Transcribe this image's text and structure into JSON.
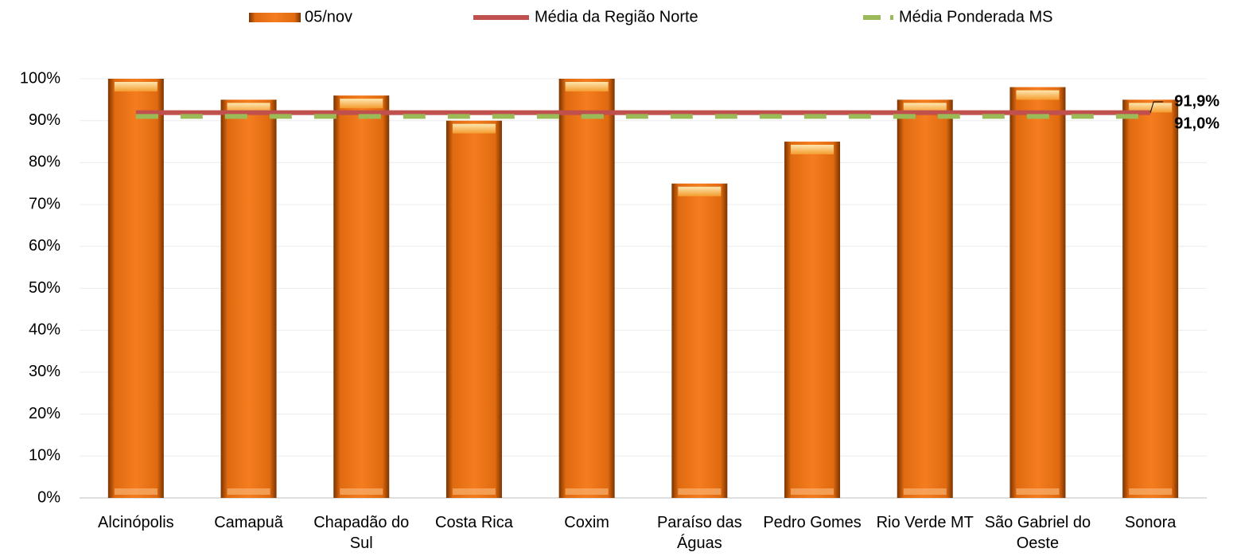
{
  "chart_data": {
    "type": "bar",
    "categories": [
      "Alcinópolis",
      "Camapuã",
      "Chapadão do Sul",
      "Costa Rica",
      "Coxim",
      "Paraíso das Águas",
      "Pedro Gomes",
      "Rio Verde MT",
      "São Gabriel do Oeste",
      "Sonora"
    ],
    "series": [
      {
        "name": "05/nov",
        "type": "bar",
        "color": "#f07820",
        "values": [
          100,
          95,
          96,
          90,
          100,
          75,
          85,
          95,
          98,
          95
        ]
      },
      {
        "name": "Média da Região Norte",
        "type": "line",
        "color": "#c0504d",
        "values": [
          91.9,
          91.9,
          91.9,
          91.9,
          91.9,
          91.9,
          91.9,
          91.9,
          91.9,
          91.9
        ],
        "value_labels": [
          null,
          null,
          null,
          null,
          null,
          null,
          null,
          null,
          null,
          "91,9%"
        ]
      },
      {
        "name": "Média Ponderada MS",
        "type": "line",
        "dashed": true,
        "color": "#9bbb59",
        "values": [
          91.0,
          91.0,
          91.0,
          91.0,
          91.0,
          91.0,
          91.0,
          91.0,
          91.0,
          91.0
        ],
        "value_labels": [
          null,
          null,
          null,
          null,
          null,
          null,
          null,
          null,
          null,
          "91,0%"
        ]
      }
    ],
    "ylim": [
      0,
      100
    ],
    "yticks": [
      {
        "value": 0,
        "label": "0%"
      },
      {
        "value": 10,
        "label": "10%"
      },
      {
        "value": 20,
        "label": "20%"
      },
      {
        "value": 30,
        "label": "30%"
      },
      {
        "value": 40,
        "label": "40%"
      },
      {
        "value": 50,
        "label": "50%"
      },
      {
        "value": 60,
        "label": "60%"
      },
      {
        "value": 70,
        "label": "70%"
      },
      {
        "value": 80,
        "label": "80%"
      },
      {
        "value": 90,
        "label": "90%"
      },
      {
        "value": 100,
        "label": "100%"
      }
    ],
    "grid": true,
    "legend": "top"
  }
}
